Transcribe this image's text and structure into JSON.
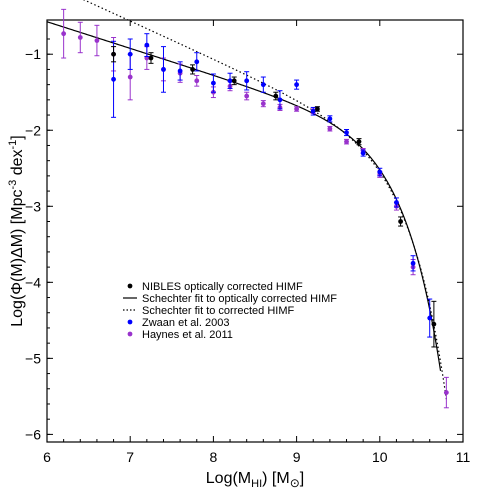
{
  "chart_data": {
    "type": "scatter",
    "xlabel": "Log(M_HI) [M⊙]",
    "ylabel": "Log(Φ(M)ΔM) [Mpc⁻³ dex⁻¹]",
    "xlim": [
      6,
      11
    ],
    "ylim": [
      -6.1,
      -0.55
    ],
    "xticks": [
      6,
      7,
      8,
      9,
      10,
      11
    ],
    "yticks": [
      -6,
      -5,
      -4,
      -3,
      -2,
      -1
    ],
    "grid": false,
    "legend_placement": "lower-left",
    "series": [
      {
        "name": "NIBLES optically corrected HIMF",
        "kind": "points",
        "color": "#000000",
        "points": [
          {
            "x": 6.8,
            "y": -1.0,
            "err": 0.1
          },
          {
            "x": 7.25,
            "y": -1.05,
            "err": 0.07
          },
          {
            "x": 7.75,
            "y": -1.2,
            "err": 0.06
          },
          {
            "x": 8.25,
            "y": -1.35,
            "err": 0.05
          },
          {
            "x": 8.75,
            "y": -1.55,
            "err": 0.05
          },
          {
            "x": 9.25,
            "y": -1.72,
            "err": 0.03
          },
          {
            "x": 9.75,
            "y": -2.15,
            "err": 0.04
          },
          {
            "x": 10.25,
            "y": -3.2,
            "err": 0.06
          },
          {
            "x": 10.65,
            "y": -4.55,
            "err": 0.3
          }
        ]
      },
      {
        "name": "Schechter fit to optically corrected HIMF",
        "kind": "line",
        "style": "solid",
        "color": "#000000",
        "alpha": -1.35,
        "log_mstar": 9.9,
        "log_phistar": -2.3,
        "x_range": [
          6,
          10.73
        ]
      },
      {
        "name": "Schechter fit to corrected HIMF",
        "kind": "line",
        "style": "dotted",
        "color": "#000000",
        "alpha": -1.5,
        "log_mstar": 9.95,
        "log_phistar": -2.4,
        "x_range": [
          6,
          10.8
        ]
      },
      {
        "name": "Zwaan et al. 2003",
        "kind": "points",
        "color": "#0000ff",
        "points": [
          {
            "x": 6.8,
            "y": -1.33,
            "err": 0.5
          },
          {
            "x": 7.0,
            "y": -1.0,
            "err": 0.2
          },
          {
            "x": 7.2,
            "y": -0.88,
            "err": 0.15
          },
          {
            "x": 7.4,
            "y": -1.2,
            "err": 0.3
          },
          {
            "x": 7.6,
            "y": -1.22,
            "err": 0.12
          },
          {
            "x": 7.8,
            "y": -1.1,
            "err": 0.12
          },
          {
            "x": 8.0,
            "y": -1.38,
            "err": 0.12
          },
          {
            "x": 8.2,
            "y": -1.35,
            "err": 0.1
          },
          {
            "x": 8.4,
            "y": -1.35,
            "err": 0.12
          },
          {
            "x": 8.6,
            "y": -1.4,
            "err": 0.1
          },
          {
            "x": 8.8,
            "y": -1.6,
            "err": 0.12
          },
          {
            "x": 9.0,
            "y": -1.4,
            "err": 0.06
          },
          {
            "x": 9.2,
            "y": -1.75,
            "err": 0.05
          },
          {
            "x": 9.4,
            "y": -1.85,
            "err": 0.04
          },
          {
            "x": 9.6,
            "y": -2.03,
            "err": 0.04
          },
          {
            "x": 9.8,
            "y": -2.3,
            "err": 0.04
          },
          {
            "x": 10.0,
            "y": -2.55,
            "err": 0.05
          },
          {
            "x": 10.2,
            "y": -2.95,
            "err": 0.06
          },
          {
            "x": 10.4,
            "y": -3.75,
            "err": 0.1
          },
          {
            "x": 10.6,
            "y": -4.47,
            "err": 0.25
          }
        ]
      },
      {
        "name": "Haynes et al. 2011",
        "kind": "points",
        "color": "#9933cc",
        "points": [
          {
            "x": 6.2,
            "y": -0.73,
            "err": 0.32
          },
          {
            "x": 6.4,
            "y": -0.78,
            "err": 0.2
          },
          {
            "x": 6.6,
            "y": -0.82,
            "err": 0.2
          },
          {
            "x": 6.8,
            "y": -1.0,
            "err": 0.22
          },
          {
            "x": 7.0,
            "y": -1.3,
            "err": 0.3
          },
          {
            "x": 7.2,
            "y": -1.05,
            "err": 0.15
          },
          {
            "x": 7.4,
            "y": -1.2,
            "err": 0.15
          },
          {
            "x": 7.6,
            "y": -1.25,
            "err": 0.12
          },
          {
            "x": 7.8,
            "y": -1.35,
            "err": 0.07
          },
          {
            "x": 8.0,
            "y": -1.5,
            "err": 0.07
          },
          {
            "x": 8.2,
            "y": -1.42,
            "err": 0.06
          },
          {
            "x": 8.4,
            "y": -1.55,
            "err": 0.05
          },
          {
            "x": 8.6,
            "y": -1.65,
            "err": 0.04
          },
          {
            "x": 8.8,
            "y": -1.7,
            "err": 0.04
          },
          {
            "x": 9.0,
            "y": -1.72,
            "err": 0.03
          },
          {
            "x": 9.2,
            "y": -1.75,
            "err": 0.03
          },
          {
            "x": 9.4,
            "y": -1.98,
            "err": 0.03
          },
          {
            "x": 9.6,
            "y": -2.15,
            "err": 0.03
          },
          {
            "x": 9.8,
            "y": -2.27,
            "err": 0.03
          },
          {
            "x": 10.0,
            "y": -2.58,
            "err": 0.04
          },
          {
            "x": 10.2,
            "y": -3.0,
            "err": 0.05
          },
          {
            "x": 10.4,
            "y": -3.8,
            "err": 0.1
          },
          {
            "x": 10.8,
            "y": -5.45,
            "err": 0.2
          }
        ]
      }
    ]
  }
}
